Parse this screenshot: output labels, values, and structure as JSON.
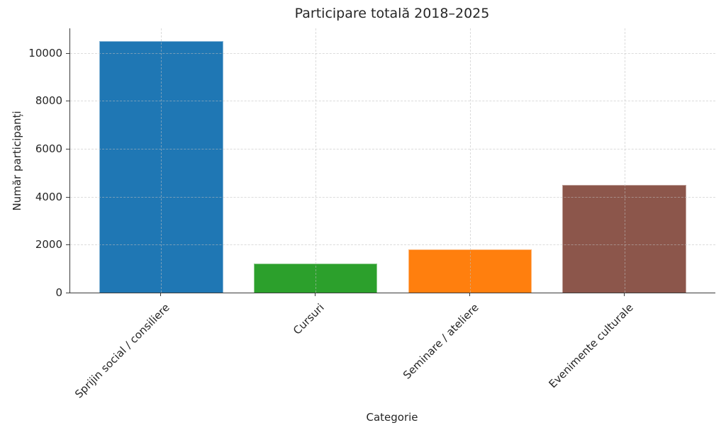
{
  "chart_data": {
    "type": "bar",
    "title": "Participare totală 2018–2025",
    "xlabel": "Categorie",
    "ylabel": "Număr participanți",
    "categories": [
      "Sprijin social / consiliere",
      "Cursuri",
      "Seminare / ateliere",
      "Evenimente culturale"
    ],
    "values": [
      10500,
      1200,
      1800,
      4500
    ],
    "bar_colors": [
      "#1f77b4",
      "#2ca02c",
      "#ff7f0e",
      "#8c564b"
    ],
    "yticks": [
      0,
      2000,
      4000,
      6000,
      8000,
      10000
    ],
    "ytick_labels": [
      "0",
      "2000",
      "4000",
      "6000",
      "8000",
      "10000"
    ],
    "ylim": [
      0,
      11025
    ],
    "bar_width_fraction": 0.8,
    "xtick_rotation_deg": 45,
    "grid": {
      "horizontal": true,
      "vertical": true,
      "style": "dashed",
      "color": "#d9d9d9",
      "drawn_over_bars": true
    },
    "legend": "none",
    "text_color": "#262626",
    "axis_color": "#3a3a3a",
    "background": "#ffffff"
  }
}
